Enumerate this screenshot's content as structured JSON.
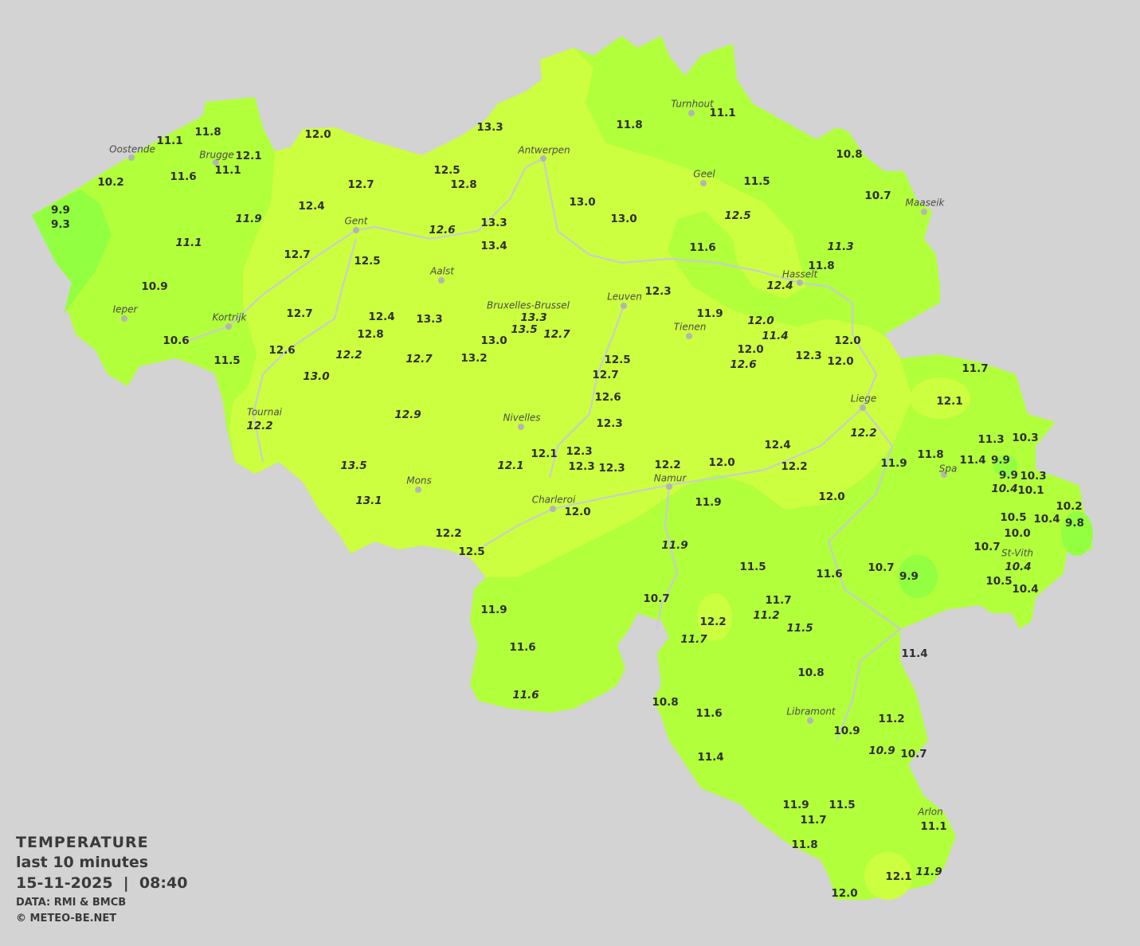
{
  "legend": {
    "title": "TEMPERATURE",
    "period": "last 10 minutes",
    "datetime": "15-11-2025  |  08:40",
    "source": "DATA: RMI & BMCB",
    "copyright": "© METEO-BE.NET"
  },
  "colors": {
    "background": "#d3d3d3",
    "temp_12_to_14": "#ccff3f",
    "temp_10_to_12": "#b2ff3c",
    "temp_below_10": "#92ff40",
    "rivers": "#c9c9dc",
    "label_text": "#2e2e2e"
  },
  "cities": [
    "Oostende",
    "Brugge",
    "Antwerpen",
    "Turnhout",
    "Geel",
    "Maaseik",
    "Gent",
    "Hasselt",
    "Aalst",
    "Leuven",
    "Bruxelles-Brussel",
    "Ieper",
    "Kortrijk",
    "Tienen",
    "Liege",
    "Tournai",
    "Nivelles",
    "Spa",
    "Mons",
    "Namur",
    "Charleroi",
    "St-Vith",
    "Libramont",
    "Arlon"
  ],
  "stations": [
    {
      "t": "11.8"
    },
    {
      "t": "11.1"
    },
    {
      "t": "12.0"
    },
    {
      "t": "13.3"
    },
    {
      "t": "12.1"
    },
    {
      "t": "11.1"
    },
    {
      "t": "10.2"
    },
    {
      "t": "11.6"
    },
    {
      "t": "12.5"
    },
    {
      "t": "12.8"
    },
    {
      "t": "12.7"
    },
    {
      "t": "9.9"
    },
    {
      "t": "9.3"
    },
    {
      "t": "12.4"
    },
    {
      "t": "11.9",
      "italic": true
    },
    {
      "t": "12.6",
      "italic": true
    },
    {
      "t": "13.3"
    },
    {
      "t": "11.1",
      "italic": true
    },
    {
      "t": "13.4"
    },
    {
      "t": "12.7"
    },
    {
      "t": "12.5"
    },
    {
      "t": "10.9"
    },
    {
      "t": "12.7"
    },
    {
      "t": "12.4"
    },
    {
      "t": "13.3"
    },
    {
      "t": "13.3",
      "italic": true
    },
    {
      "t": "13.5",
      "italic": true
    },
    {
      "t": "12.7",
      "italic": true
    },
    {
      "t": "12.8"
    },
    {
      "t": "10.6"
    },
    {
      "t": "13.0"
    },
    {
      "t": "12.6"
    },
    {
      "t": "12.2",
      "italic": true
    },
    {
      "t": "12.7",
      "italic": true
    },
    {
      "t": "13.2"
    },
    {
      "t": "11.5"
    },
    {
      "t": "13.0",
      "italic": true
    },
    {
      "t": "12.9",
      "italic": true
    },
    {
      "t": "12.2",
      "italic": true
    },
    {
      "t": "13.5",
      "italic": true
    },
    {
      "t": "12.1",
      "italic": true
    },
    {
      "t": "12.1"
    },
    {
      "t": "12.3"
    },
    {
      "t": "12.3"
    },
    {
      "t": "12.3"
    },
    {
      "t": "13.1",
      "italic": true
    },
    {
      "t": "12.0"
    },
    {
      "t": "12.2"
    },
    {
      "t": "12.5"
    },
    {
      "t": "11.8"
    },
    {
      "t": "11.1"
    },
    {
      "t": "10.8"
    },
    {
      "t": "11.5"
    },
    {
      "t": "10.7"
    },
    {
      "t": "13.0"
    },
    {
      "t": "13.0"
    },
    {
      "t": "12.5",
      "italic": true
    },
    {
      "t": "11.3",
      "italic": true
    },
    {
      "t": "11.6"
    },
    {
      "t": "11.8"
    },
    {
      "t": "12.4",
      "italic": true
    },
    {
      "t": "12.3"
    },
    {
      "t": "11.9"
    },
    {
      "t": "12.0",
      "italic": true
    },
    {
      "t": "11.4",
      "italic": true
    },
    {
      "t": "12.0"
    },
    {
      "t": "12.0"
    },
    {
      "t": "12.6",
      "italic": true
    },
    {
      "t": "12.3"
    },
    {
      "t": "12.0"
    },
    {
      "t": "12.5"
    },
    {
      "t": "12.7"
    },
    {
      "t": "12.6"
    },
    {
      "t": "12.3"
    },
    {
      "t": "11.7"
    },
    {
      "t": "12.1"
    },
    {
      "t": "12.2",
      "italic": true
    },
    {
      "t": "11.3"
    },
    {
      "t": "10.3"
    },
    {
      "t": "12.4"
    },
    {
      "t": "12.2"
    },
    {
      "t": "12.0"
    },
    {
      "t": "12.2"
    },
    {
      "t": "11.9"
    },
    {
      "t": "11.8"
    },
    {
      "t": "11.4"
    },
    {
      "t": "9.9"
    },
    {
      "t": "9.9"
    },
    {
      "t": "10.3"
    },
    {
      "t": "10.4",
      "italic": true
    },
    {
      "t": "10.1"
    },
    {
      "t": "12.0"
    },
    {
      "t": "11.9"
    },
    {
      "t": "10.2"
    },
    {
      "t": "10.4"
    },
    {
      "t": "9.8"
    },
    {
      "t": "10.5"
    },
    {
      "t": "10.0"
    },
    {
      "t": "10.7"
    },
    {
      "t": "11.9",
      "italic": true
    },
    {
      "t": "11.5"
    },
    {
      "t": "11.6"
    },
    {
      "t": "10.7"
    },
    {
      "t": "9.9"
    },
    {
      "t": "10.4",
      "italic": true
    },
    {
      "t": "10.5"
    },
    {
      "t": "10.4"
    },
    {
      "t": "10.7"
    },
    {
      "t": "11.7"
    },
    {
      "t": "11.2",
      "italic": true
    },
    {
      "t": "12.2"
    },
    {
      "t": "11.5",
      "italic": true
    },
    {
      "t": "11.9"
    },
    {
      "t": "11.7",
      "italic": true
    },
    {
      "t": "11.6"
    },
    {
      "t": "11.4"
    },
    {
      "t": "10.8"
    },
    {
      "t": "11.6",
      "italic": true
    },
    {
      "t": "10.8"
    },
    {
      "t": "11.6"
    },
    {
      "t": "11.2"
    },
    {
      "t": "10.9"
    },
    {
      "t": "10.9",
      "italic": true
    },
    {
      "t": "10.7"
    },
    {
      "t": "11.4"
    },
    {
      "t": "11.9"
    },
    {
      "t": "11.5"
    },
    {
      "t": "11.7"
    },
    {
      "t": "11.1"
    },
    {
      "t": "11.8"
    },
    {
      "t": "12.1"
    },
    {
      "t": "11.9",
      "italic": true
    },
    {
      "t": "12.0"
    }
  ]
}
